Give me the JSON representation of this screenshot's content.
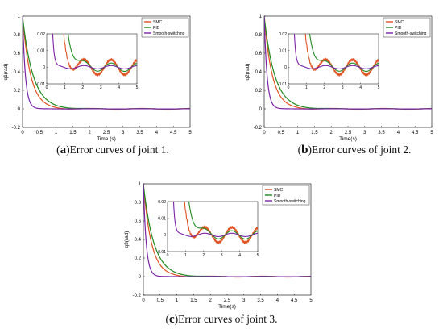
{
  "colors": {
    "SMC": "#e1501f",
    "PID": "#1f8a1f",
    "Smooth-switching": "#7b22a8",
    "black": "#000000"
  },
  "chart_data": [
    {
      "type": "line",
      "panel_label": "a",
      "caption": "Error curves of joint 1.",
      "xlabel": "Time (s)",
      "ylabel": "q1(rad)",
      "xlim": [
        0,
        5
      ],
      "ylim": [
        -0.2,
        1
      ],
      "xticks": [
        "0",
        "0.5",
        "1",
        "1.5",
        "2",
        "2.5",
        "3",
        "3.5",
        "4",
        "4.5",
        "5"
      ],
      "yticks": [
        "-0.2",
        "0",
        "0.2",
        "0.4",
        "0.6",
        "0.8",
        "1"
      ],
      "legend": [
        "SMC",
        "PID",
        "Smooth-switching"
      ],
      "legend_position": "top-right",
      "inset": {
        "xlim": [
          0,
          5
        ],
        "ylim": [
          -0.01,
          0.02
        ],
        "xticks": [
          "0",
          "1",
          "2",
          "3",
          "4",
          "5"
        ],
        "yticks": [
          "-0.01",
          "0",
          "0.01",
          "0.02"
        ]
      },
      "series": [
        {
          "name": "SMC",
          "decay": 0.24,
          "amp": 0.0045
        },
        {
          "name": "PID",
          "decay": 0.31,
          "amp": 0.0025
        },
        {
          "name": "Smooth-switching",
          "decay": 0.085,
          "amp": 0.001
        }
      ]
    },
    {
      "type": "line",
      "panel_label": "b",
      "caption": "Error curves of joint 2.",
      "xlabel": "Time(s)",
      "ylabel": "q2(rad)",
      "xlim": [
        0,
        5
      ],
      "ylim": [
        -0.2,
        1
      ],
      "xticks": [
        "0",
        "0.5",
        "1",
        "1.5",
        "2",
        "2.5",
        "3",
        "3.5",
        "4",
        "4.5",
        "5"
      ],
      "yticks": [
        "-0.2",
        "0",
        "0.2",
        "0.4",
        "0.6",
        "0.8",
        "1"
      ],
      "legend": [
        "SMC",
        "PID",
        "Smooth-switching"
      ],
      "legend_position": "top-right",
      "inset": {
        "xlim": [
          0,
          5
        ],
        "ylim": [
          -0.01,
          0.02
        ],
        "xticks": [
          "0",
          "1",
          "2",
          "3",
          "4",
          "5"
        ],
        "yticks": [
          "-0.01",
          "0",
          "0.01",
          "0.02"
        ]
      },
      "series": [
        {
          "name": "SMC",
          "decay": 0.24,
          "amp": 0.0045
        },
        {
          "name": "PID",
          "decay": 0.31,
          "amp": 0.0025
        },
        {
          "name": "Smooth-switching",
          "decay": 0.085,
          "amp": 0.001
        }
      ]
    },
    {
      "type": "line",
      "panel_label": "c",
      "caption": "Error curves of joint 3.",
      "xlabel": "Time(s)",
      "ylabel": "q3(rad)",
      "xlim": [
        0,
        5
      ],
      "ylim": [
        -0.2,
        1
      ],
      "xticks": [
        "0",
        "0.5",
        "1",
        "1.5",
        "2",
        "2.5",
        "3",
        "3.5",
        "4",
        "4.5",
        "5"
      ],
      "yticks": [
        "-0.2",
        "0",
        "0.2",
        "0.4",
        "0.6",
        "0.8",
        "1"
      ],
      "legend": [
        "SMC",
        "PID",
        "Smooth-switching"
      ],
      "legend_position": "top-right",
      "inset": {
        "xlim": [
          0,
          5
        ],
        "ylim": [
          -0.01,
          0.02
        ],
        "xticks": [
          "0",
          "1",
          "2",
          "3",
          "4",
          "5"
        ],
        "yticks": [
          "-0.01",
          "0",
          "0.01",
          "0.02"
        ]
      },
      "series": [
        {
          "name": "SMC",
          "decay": 0.24,
          "amp": 0.0045
        },
        {
          "name": "PID",
          "decay": 0.31,
          "amp": 0.0025
        },
        {
          "name": "Smooth-switching",
          "decay": 0.085,
          "amp": 0.001
        }
      ]
    }
  ]
}
